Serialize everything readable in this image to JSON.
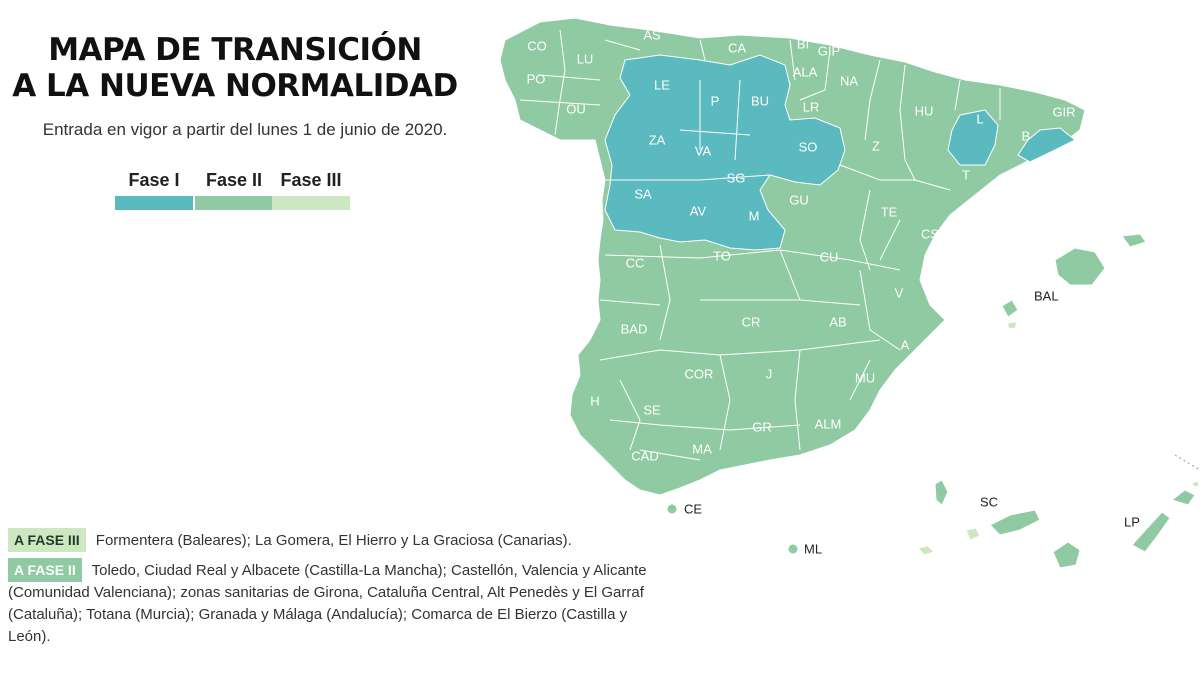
{
  "title": {
    "line1": "MAPA DE TRANSICIÓN",
    "line2": "A LA NUEVA NORMALIDAD"
  },
  "subtitle": "Entrada en vigor a partir del lunes 1 de junio de 2020.",
  "legend": [
    {
      "label": "Fase I",
      "color": "#5bbac0"
    },
    {
      "label": "Fase II",
      "color": "#8fcaa3"
    },
    {
      "label": "Fase III",
      "color": "#cde8c0"
    }
  ],
  "colors": {
    "fase1": "#5bbac0",
    "fase2": "#8fcaa3",
    "fase3": "#cde8c0",
    "border": "#ffffff"
  },
  "provinces": {
    "CO": "CO",
    "LU": "LU",
    "AS": "AS",
    "CA": "CA",
    "BI": "BI",
    "GIP": "GIP",
    "ALA": "ALA",
    "NA": "NA",
    "PO": "PO",
    "OU": "OU",
    "LE": "LE",
    "P": "P",
    "BU": "BU",
    "LR": "LR",
    "HU": "HU",
    "GIR": "GIR",
    "L": "L",
    "B": "B",
    "ZA": "ZA",
    "VA": "VA",
    "SO": "SO",
    "Z": "Z",
    "SA": "SA",
    "SG": "SG",
    "T": "T",
    "AV": "AV",
    "M": "M",
    "GU": "GU",
    "TE": "TE",
    "CS": "CS",
    "CC": "CC",
    "TO": "TO",
    "CU": "CU",
    "V": "V",
    "BAD": "BAD",
    "CR": "CR",
    "AB": "AB",
    "A": "A",
    "COR": "COR",
    "J": "J",
    "MU": "MU",
    "H": "H",
    "SE": "SE",
    "GR": "GR",
    "ALM": "ALM",
    "MA": "MA",
    "CAD": "CAD"
  },
  "external": {
    "BAL": "BAL",
    "CE": "CE",
    "ML": "ML",
    "SC": "SC",
    "LP": "LP"
  },
  "notes": [
    {
      "badge": "A FASE III",
      "text": "Formentera (Baleares); La Gomera, El Hierro y La Graciosa (Canarias)."
    },
    {
      "badge": "A FASE II",
      "text": "Toledo, Ciudad Real y Albacete (Castilla-La Mancha); Castellón, Valencia y Alicante (Comunidad Valenciana); zonas sanitarias de Girona, Cataluña Central, Alt Penedès y El Garraf (Cataluña); Totana (Murcia); Granada y Málaga (Andalucía); Comarca de El Bierzo (Castilla y León)."
    }
  ]
}
